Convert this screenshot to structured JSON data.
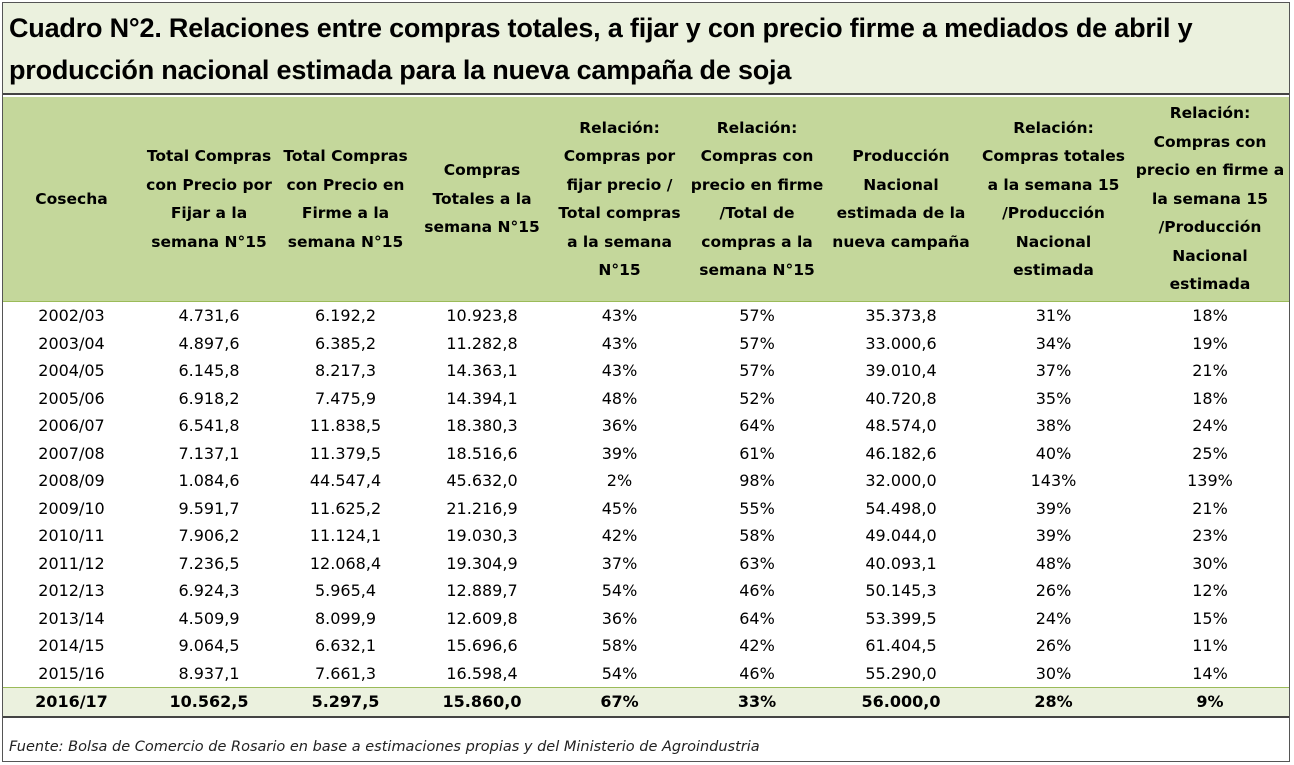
{
  "title": "Cuadro N°2. Relaciones entre compras totales, a fijar y con precio firme a mediados de abril y producción nacional estimada para la nueva campaña de soja",
  "table": {
    "headers": [
      "Cosecha",
      "Total Compras con Precio por Fijar a la semana N°15",
      "Total Compras con Precio en Firme a la semana N°15",
      "Compras Totales a la semana N°15",
      "Relación: Compras por fijar precio / Total compras a la semana N°15",
      "Relación: Compras con precio en firme /Total de compras a la semana N°15",
      "Producción Nacional estimada de la nueva campaña",
      "Relación: Compras totales a la semana 15 /Producción Nacional estimada",
      "Relación: Compras con precio en firme a la semana 15 /Producción Nacional estimada"
    ],
    "rows": [
      [
        "2002/03",
        "4.731,6",
        "6.192,2",
        "10.923,8",
        "43%",
        "57%",
        "35.373,8",
        "31%",
        "18%"
      ],
      [
        "2003/04",
        "4.897,6",
        "6.385,2",
        "11.282,8",
        "43%",
        "57%",
        "33.000,6",
        "34%",
        "19%"
      ],
      [
        "2004/05",
        "6.145,8",
        "8.217,3",
        "14.363,1",
        "43%",
        "57%",
        "39.010,4",
        "37%",
        "21%"
      ],
      [
        "2005/06",
        "6.918,2",
        "7.475,9",
        "14.394,1",
        "48%",
        "52%",
        "40.720,8",
        "35%",
        "18%"
      ],
      [
        "2006/07",
        "6.541,8",
        "11.838,5",
        "18.380,3",
        "36%",
        "64%",
        "48.574,0",
        "38%",
        "24%"
      ],
      [
        "2007/08",
        "7.137,1",
        "11.379,5",
        "18.516,6",
        "39%",
        "61%",
        "46.182,6",
        "40%",
        "25%"
      ],
      [
        "2008/09",
        "1.084,6",
        "44.547,4",
        "45.632,0",
        "2%",
        "98%",
        "32.000,0",
        "143%",
        "139%"
      ],
      [
        "2009/10",
        "9.591,7",
        "11.625,2",
        "21.216,9",
        "45%",
        "55%",
        "54.498,0",
        "39%",
        "21%"
      ],
      [
        "2010/11",
        "7.906,2",
        "11.124,1",
        "19.030,3",
        "42%",
        "58%",
        "49.044,0",
        "39%",
        "23%"
      ],
      [
        "2011/12",
        "7.236,5",
        "12.068,4",
        "19.304,9",
        "37%",
        "63%",
        "40.093,1",
        "48%",
        "30%"
      ],
      [
        "2012/13",
        "6.924,3",
        "5.965,4",
        "12.889,7",
        "54%",
        "46%",
        "50.145,3",
        "26%",
        "12%"
      ],
      [
        "2013/14",
        "4.509,9",
        "8.099,9",
        "12.609,8",
        "36%",
        "64%",
        "53.399,5",
        "24%",
        "15%"
      ],
      [
        "2014/15",
        "9.064,5",
        "6.632,1",
        "15.696,6",
        "58%",
        "42%",
        "61.404,5",
        "26%",
        "11%"
      ],
      [
        "2015/16",
        "8.937,1",
        "7.661,3",
        "16.598,4",
        "54%",
        "46%",
        "55.290,0",
        "30%",
        "14%"
      ],
      [
        "2016/17",
        "10.562,5",
        "5.297,5",
        "15.860,0",
        "67%",
        "33%",
        "56.000,0",
        "28%",
        "9%"
      ]
    ]
  },
  "source": "Fuente: Bolsa de Comercio de Rosario en base a estimaciones propias y del Ministerio de Agroindustria",
  "colors": {
    "header_bg": "#c4d79b",
    "title_bg": "#ebf1de",
    "highlight_row_bg": "#ebf1de"
  }
}
